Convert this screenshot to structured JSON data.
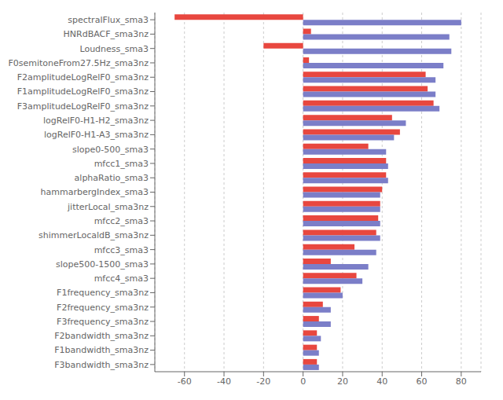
{
  "chart_data": {
    "type": "bar",
    "orientation": "horizontal",
    "categories": [
      "spectralFlux_sma3",
      "HNRdBACF_sma3nz",
      "Loudness_sma3",
      "F0semitoneFrom27.5Hz_sma3nz",
      "F2amplitudeLogRelF0_sma3nz",
      "F1amplitudeLogRelF0_sma3nz",
      "F3amplitudeLogRelF0_sma3nz",
      "logRelF0-H1-H2_sma3nz",
      "logRelF0-H1-A3_sma3nz",
      "slope0-500_sma3",
      "mfcc1_sma3",
      "alphaRatio_sma3",
      "hammarbergIndex_sma3",
      "jitterLocal_sma3nz",
      "mfcc2_sma3",
      "shimmerLocaldB_sma3nz",
      "mfcc3_sma3",
      "slope500-1500_sma3",
      "mfcc4_sma3",
      "F1frequency_sma3nz",
      "F2frequency_sma3nz",
      "F3frequency_sma3nz",
      "F2bandwidth_sma3nz",
      "F1bandwidth_sma3nz",
      "F3bandwidth_sma3nz"
    ],
    "series": [
      {
        "color": "#e8473f",
        "values": [
          -65,
          4,
          -20,
          3,
          62,
          63,
          66,
          45,
          49,
          33,
          42,
          42,
          40,
          39,
          38,
          37,
          26,
          14,
          27,
          19,
          10,
          8,
          7,
          7,
          7
        ]
      },
      {
        "color": "#7b7ec8",
        "values": [
          80,
          74,
          75,
          71,
          67,
          67,
          69,
          52,
          46,
          42,
          43,
          43,
          39,
          39,
          39,
          39,
          37,
          33,
          30,
          20,
          14,
          14,
          9,
          8,
          8
        ]
      }
    ],
    "xlim": [
      -75,
      90
    ],
    "xticks": [
      -60,
      -40,
      -20,
      0,
      20,
      40,
      60,
      80
    ],
    "grid": true
  }
}
